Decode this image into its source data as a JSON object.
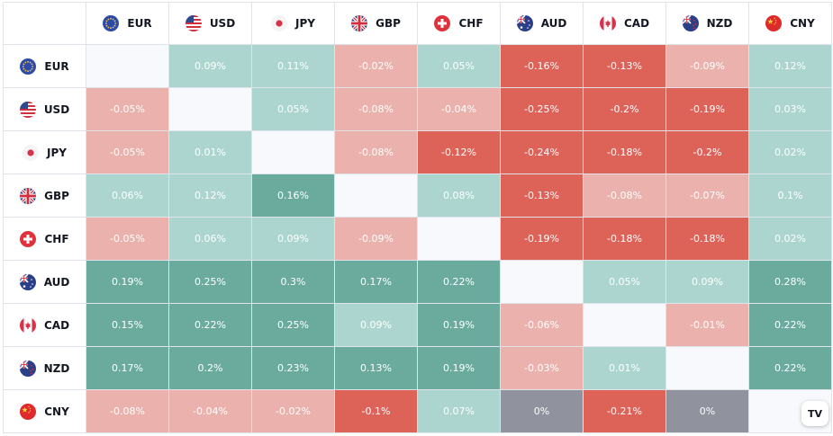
{
  "currencies": [
    "EUR",
    "USD",
    "JPY",
    "GBP",
    "CHF",
    "AUD",
    "CAD",
    "NZD",
    "CNY"
  ],
  "matrix": [
    [
      "",
      "0.09%",
      "0.11%",
      "-0.02%",
      "0.05%",
      "-0.16%",
      "-0.13%",
      "-0.09%",
      "0.12%"
    ],
    [
      "-0.05%",
      "",
      "0.05%",
      "-0.08%",
      "-0.04%",
      "-0.25%",
      "-0.2%",
      "-0.19%",
      "0.03%"
    ],
    [
      "-0.05%",
      "0.01%",
      "",
      "-0.08%",
      "-0.12%",
      "-0.24%",
      "-0.18%",
      "-0.2%",
      "0.02%"
    ],
    [
      "0.06%",
      "0.12%",
      "0.16%",
      "",
      "0.08%",
      "-0.13%",
      "-0.08%",
      "-0.07%",
      "0.1%"
    ],
    [
      "-0.05%",
      "0.06%",
      "0.09%",
      "-0.09%",
      "",
      "-0.19%",
      "-0.18%",
      "-0.18%",
      "0.02%"
    ],
    [
      "0.19%",
      "0.25%",
      "0.3%",
      "0.17%",
      "0.22%",
      "",
      "0.05%",
      "0.09%",
      "0.28%"
    ],
    [
      "0.15%",
      "0.22%",
      "0.25%",
      "0.09%",
      "0.19%",
      "-0.06%",
      "",
      "-0.01%",
      "0.22%"
    ],
    [
      "0.17%",
      "0.2%",
      "0.23%",
      "0.13%",
      "0.19%",
      "-0.03%",
      "0.01%",
      "",
      "0.22%"
    ],
    [
      "-0.08%",
      "-0.04%",
      "-0.02%",
      "-0.1%",
      "0.07%",
      "0%",
      "-0.21%",
      "0%",
      ""
    ]
  ],
  "colors": {
    "pos_light": "#acd5cf",
    "pos_dark": "#6aab9e",
    "neg_light": "#ebb2ad",
    "neg_dark": "#dd6359",
    "zero": "#90939d",
    "empty": "#f8f9fd"
  },
  "flags": [
    "eu-flag-icon",
    "us-flag-icon",
    "jp-flag-icon",
    "gb-flag-icon",
    "ch-flag-icon",
    "au-flag-icon",
    "ca-flag-icon",
    "nz-flag-icon",
    "cn-flag-icon"
  ],
  "widget": {
    "logo_text": "TV"
  }
}
